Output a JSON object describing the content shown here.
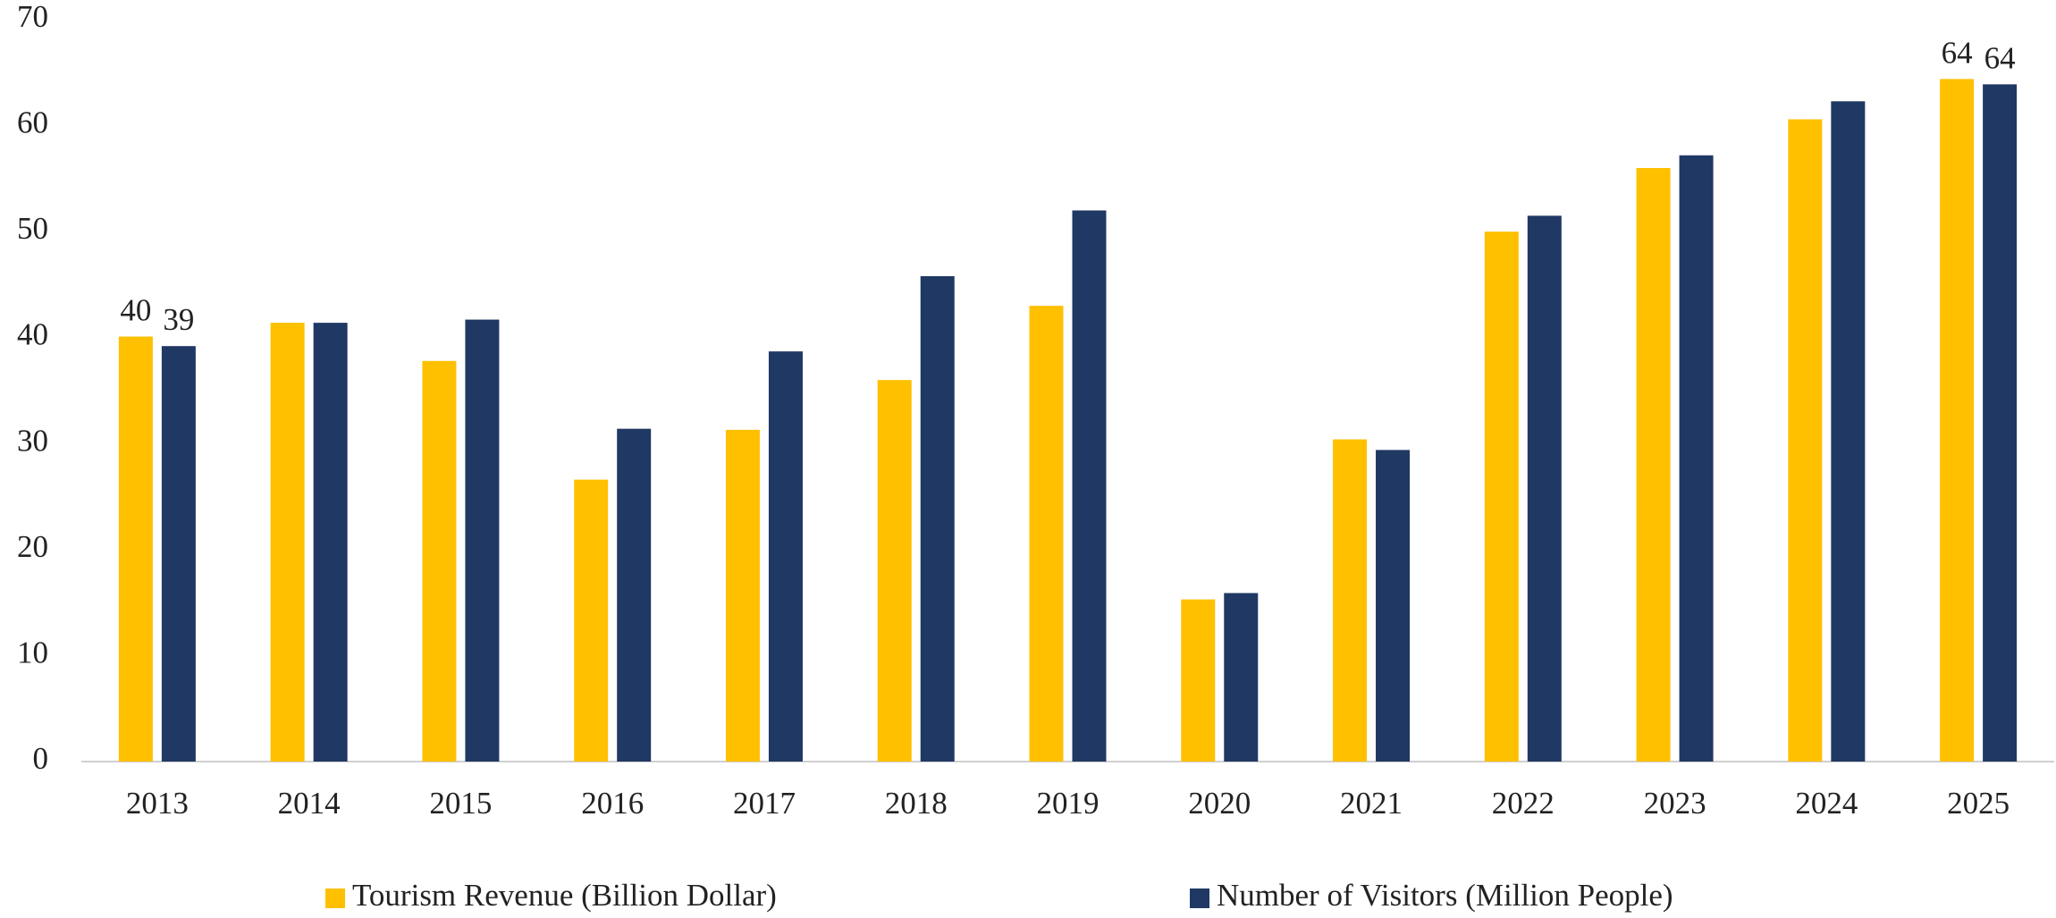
{
  "chart_data": {
    "type": "bar",
    "categories": [
      "2013",
      "2014",
      "2015",
      "2016",
      "2017",
      "2018",
      "2019",
      "2020",
      "2021",
      "2022",
      "2023",
      "2024",
      "2025"
    ],
    "series": [
      {
        "name": "Tourism Revenue (Billion Dollar)",
        "color": "#ffc000",
        "values": [
          40.1,
          41.4,
          37.8,
          26.6,
          31.3,
          36.0,
          43.0,
          15.3,
          30.4,
          50.0,
          56.0,
          60.6,
          64.4
        ],
        "value_labels": [
          "40",
          null,
          null,
          null,
          null,
          null,
          null,
          null,
          null,
          null,
          null,
          null,
          "64"
        ]
      },
      {
        "name": "Number of Visitors (Million People)",
        "color": "#203864",
        "values": [
          39.2,
          41.4,
          41.7,
          31.4,
          38.7,
          45.8,
          52.0,
          15.9,
          29.4,
          51.5,
          57.2,
          62.3,
          63.9
        ],
        "value_labels": [
          "39",
          null,
          null,
          null,
          null,
          null,
          null,
          null,
          null,
          null,
          null,
          null,
          "64"
        ]
      }
    ],
    "ylim": [
      0,
      70
    ],
    "yticks": [
      0,
      10,
      20,
      30,
      40,
      50,
      60,
      70
    ],
    "grid": false,
    "legend": "bottom"
  }
}
